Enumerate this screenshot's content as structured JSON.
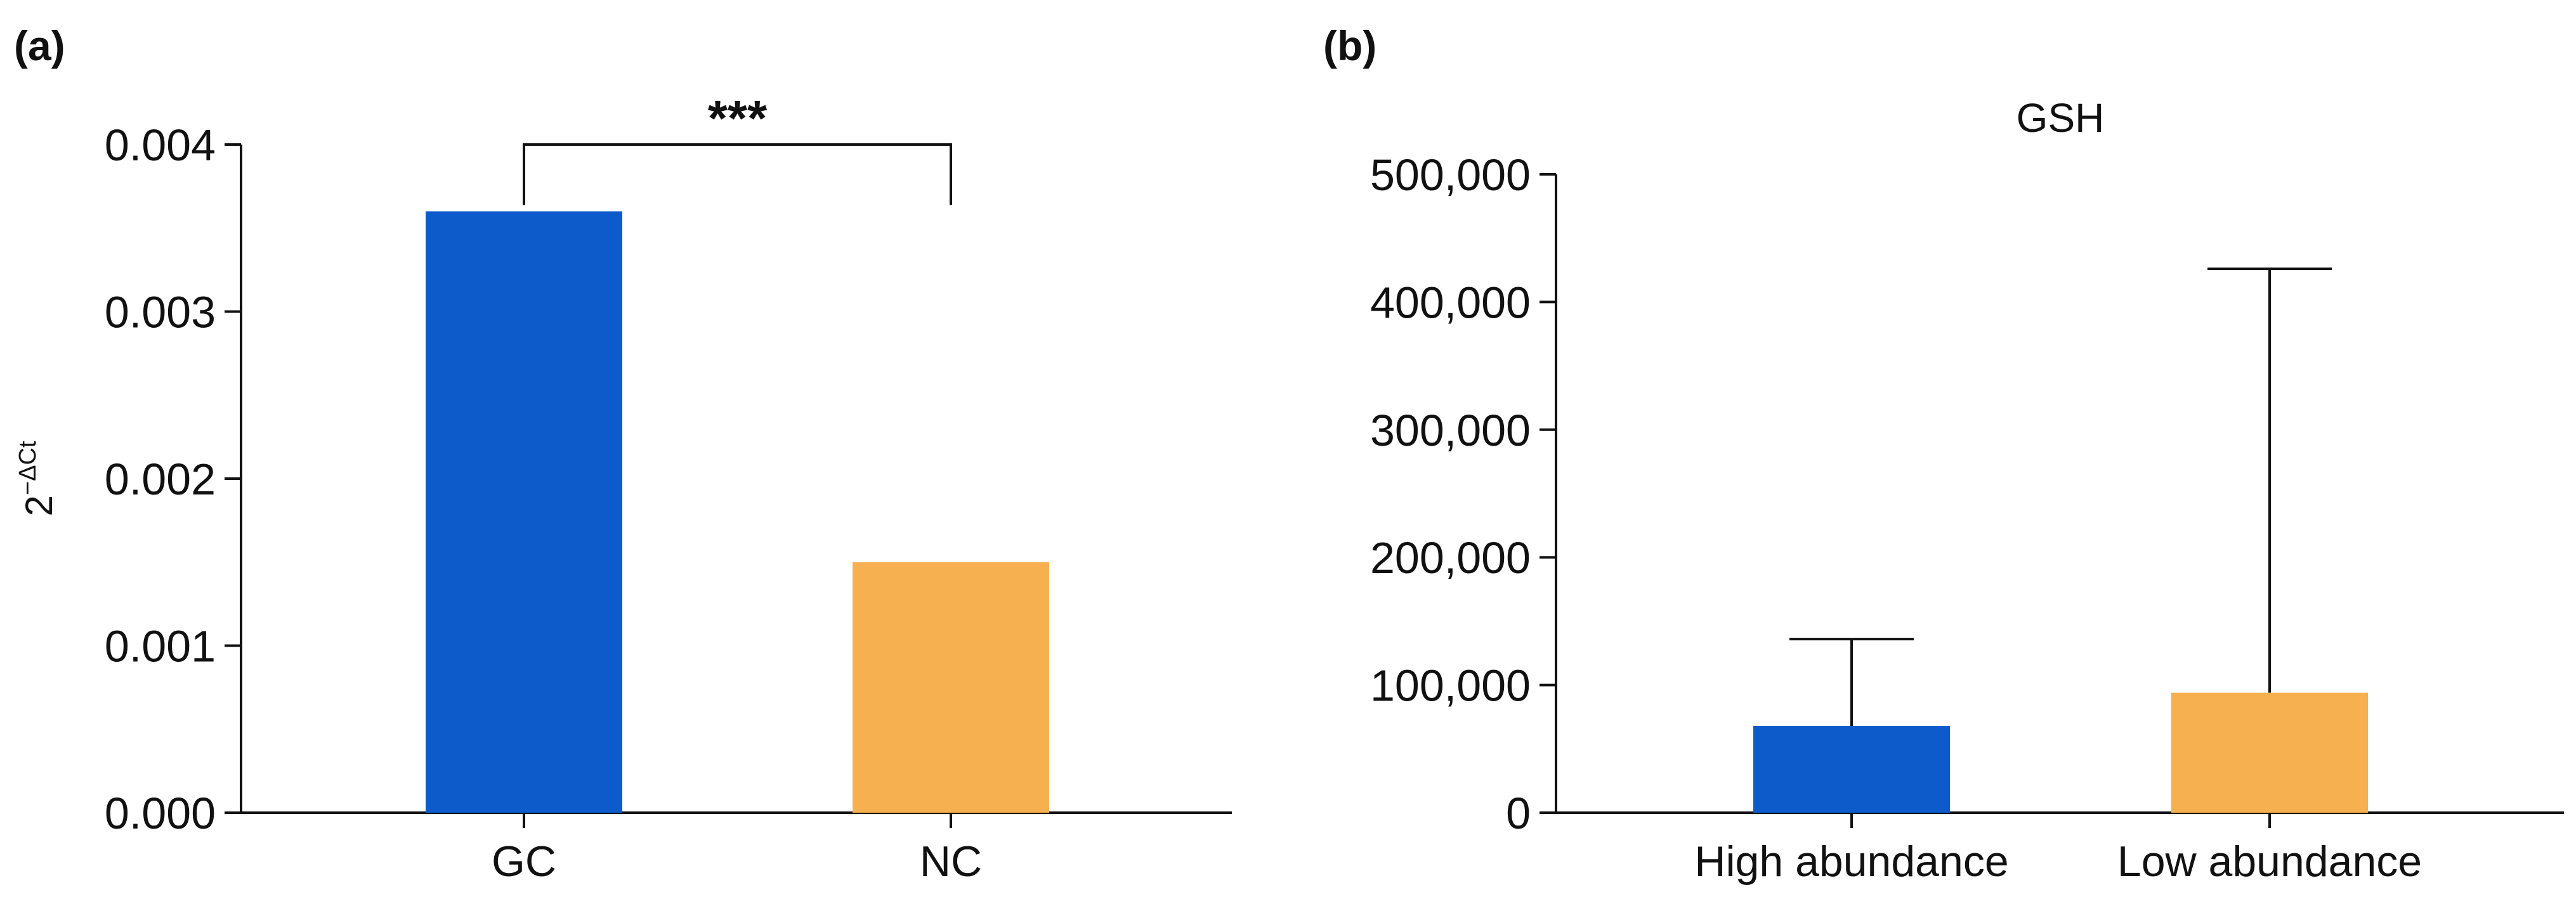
{
  "figure": {
    "panel_a_label": "(a)",
    "panel_b_label": "(b)"
  },
  "chart_data": [
    {
      "type": "bar",
      "panel": "(a)",
      "title": "",
      "xlabel": "",
      "ylabel": "2",
      "ylabel_superscript": "−ΔCt",
      "categories": [
        "GC",
        "NC"
      ],
      "values": [
        0.0036,
        0.0015
      ],
      "colors": [
        "#0d5bcb",
        "#f6b04f"
      ],
      "ylim": [
        0,
        0.004
      ],
      "yticks": [
        "0.000",
        "0.001",
        "0.002",
        "0.003",
        "0.004"
      ],
      "significance": {
        "between": [
          "GC",
          "NC"
        ],
        "label": "***"
      },
      "grid": false
    },
    {
      "type": "bar",
      "panel": "(b)",
      "title": "GSH",
      "xlabel": "",
      "ylabel": "",
      "categories": [
        "High abundance",
        "Low abundance"
      ],
      "values": [
        68000,
        94000
      ],
      "error_upper": [
        136000,
        426000
      ],
      "colors": [
        "#0d5bcb",
        "#f6b04f"
      ],
      "ylim": [
        0,
        500000
      ],
      "yticks": [
        "0",
        "100,000",
        "200,000",
        "300,000",
        "400,000",
        "500,000"
      ],
      "grid": false
    }
  ]
}
